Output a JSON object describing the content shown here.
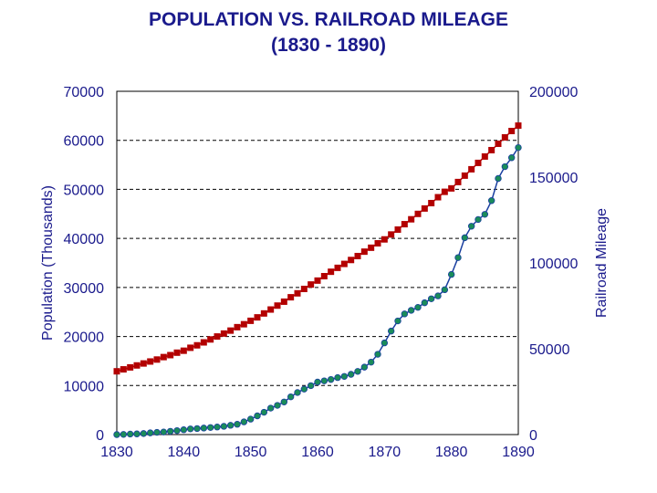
{
  "chart_data": {
    "type": "line",
    "title": "POPULATION VS. RAILROAD MILEAGE",
    "subtitle": "(1830 - 1890)",
    "xlabel": "",
    "ylabel": "Population (Thousands)",
    "y2label": "Railroad Mileage",
    "xlim": [
      1830,
      1890
    ],
    "ylim": [
      0,
      70000
    ],
    "y2lim": [
      0,
      200000
    ],
    "x_ticks": [
      "1830",
      "1840",
      "1850",
      "1860",
      "1870",
      "1880",
      "1890"
    ],
    "y_ticks": [
      "0",
      "10000",
      "20000",
      "30000",
      "40000",
      "50000",
      "60000",
      "70000"
    ],
    "y2_ticks": [
      "0",
      "50000",
      "100000",
      "150000",
      "200000"
    ],
    "grid": "horizontal dashed",
    "series": [
      {
        "name": "Population (Thousands)",
        "axis": "left",
        "color": "#b30000",
        "marker": "square",
        "x": [
          1830,
          1831,
          1832,
          1833,
          1834,
          1835,
          1836,
          1837,
          1838,
          1839,
          1840,
          1841,
          1842,
          1843,
          1844,
          1845,
          1846,
          1847,
          1848,
          1849,
          1850,
          1851,
          1852,
          1853,
          1854,
          1855,
          1856,
          1857,
          1858,
          1859,
          1860,
          1861,
          1862,
          1863,
          1864,
          1865,
          1866,
          1867,
          1868,
          1869,
          1870,
          1871,
          1872,
          1873,
          1874,
          1875,
          1876,
          1877,
          1878,
          1879,
          1880,
          1881,
          1882,
          1883,
          1884,
          1885,
          1886,
          1887,
          1888,
          1889,
          1890
        ],
        "values": [
          12900,
          13300,
          13700,
          14100,
          14500,
          14900,
          15300,
          15800,
          16200,
          16700,
          17100,
          17700,
          18200,
          18800,
          19400,
          20000,
          20600,
          21200,
          21900,
          22500,
          23200,
          23900,
          24700,
          25500,
          26300,
          27100,
          28000,
          28800,
          29700,
          30600,
          31400,
          32300,
          33200,
          34000,
          34800,
          35600,
          36400,
          37300,
          38100,
          39000,
          39800,
          40800,
          41800,
          42900,
          43900,
          45000,
          46100,
          47200,
          48400,
          49500,
          50200,
          51500,
          52800,
          54100,
          55400,
          56700,
          58000,
          59300,
          60600,
          61900,
          63000
        ]
      },
      {
        "name": "Railroad Mileage",
        "axis": "right",
        "color": "#1a3fa0",
        "marker_color": "#1a8c5a",
        "marker": "circle",
        "x": [
          1830,
          1831,
          1832,
          1833,
          1834,
          1835,
          1836,
          1837,
          1838,
          1839,
          1840,
          1841,
          1842,
          1843,
          1844,
          1845,
          1846,
          1847,
          1848,
          1849,
          1850,
          1851,
          1852,
          1853,
          1854,
          1855,
          1856,
          1857,
          1858,
          1859,
          1860,
          1861,
          1862,
          1863,
          1864,
          1865,
          1866,
          1867,
          1868,
          1869,
          1870,
          1871,
          1872,
          1873,
          1874,
          1875,
          1876,
          1877,
          1878,
          1879,
          1880,
          1881,
          1882,
          1883,
          1884,
          1885,
          1886,
          1887,
          1888,
          1889,
          1890
        ],
        "values": [
          0,
          100,
          300,
          400,
          600,
          1000,
          1300,
          1500,
          1900,
          2300,
          2800,
          3300,
          3500,
          3800,
          4100,
          4400,
          4800,
          5400,
          6000,
          7400,
          9000,
          10900,
          13000,
          15400,
          17000,
          19000,
          22000,
          24500,
          26500,
          28500,
          30600,
          31300,
          32100,
          33200,
          33900,
          35100,
          36800,
          39300,
          42200,
          46800,
          53400,
          60300,
          66200,
          70300,
          72400,
          74100,
          76800,
          79100,
          80800,
          84400,
          93300,
          103100,
          114700,
          121400,
          125300,
          128300,
          136300,
          149200,
          156100,
          161300,
          167200
        ]
      }
    ]
  }
}
